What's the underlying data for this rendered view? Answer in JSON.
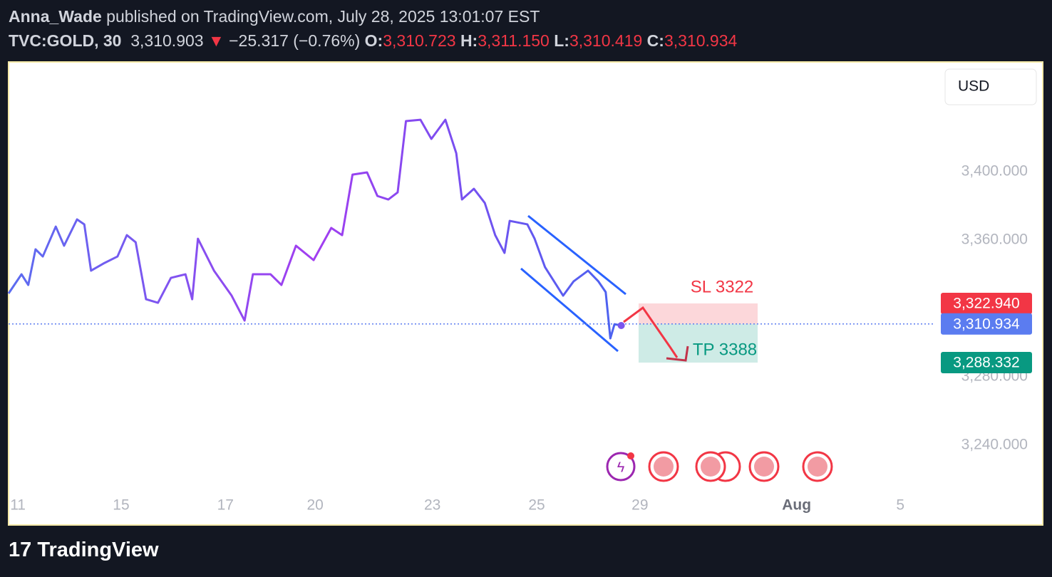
{
  "header": {
    "author": "Anna_Wade",
    "published": "published on TradingView.com, July 28, 2025 13:01:07 EST",
    "symbol": "TVC:GOLD, 30",
    "last": "3,310.903",
    "arrow": "▼",
    "change": "−25.317 (−0.76%)",
    "ohlc": [
      {
        "key": "O:",
        "value": "3,310.723"
      },
      {
        "key": "H:",
        "value": "3,311.150"
      },
      {
        "key": "L:",
        "value": "3,310.419"
      },
      {
        "key": "C:",
        "value": "3,310.934"
      }
    ]
  },
  "currency": "USD",
  "footer": "TradingView",
  "chart_data": {
    "type": "line",
    "x": [
      0,
      0.25,
      0.38,
      0.52,
      0.66,
      0.91,
      1.07,
      1.32,
      1.46,
      1.59,
      1.83,
      2.1,
      2.28,
      2.45,
      2.65,
      2.88,
      3.13,
      3.41,
      3.54,
      3.65,
      3.96,
      4.3,
      4.55,
      4.71,
      5.05,
      5.26,
      5.54,
      5.88,
      6.22,
      6.43,
      6.63,
      6.91,
      7.11,
      7.32,
      7.5,
      7.66,
      7.94,
      8.15,
      8.42,
      8.63,
      8.74,
      8.97,
      9.18,
      9.38,
      9.56,
      9.66,
      10.0,
      10.14,
      10.34,
      10.69,
      10.89,
      11.17,
      11.37,
      11.51,
      11.6,
      11.68,
      11.81
    ],
    "series": [
      {
        "name": "TVC:GOLD",
        "color": "#7b55ee",
        "values": [
          3328.75,
          3340,
          3333.75,
          3354.6,
          3350.4,
          3367.9,
          3356.7,
          3372.1,
          3369.2,
          3342.1,
          3346.3,
          3350.4,
          3362.9,
          3358.75,
          3325.4,
          3323.3,
          3337.9,
          3340,
          3325.4,
          3360.8,
          3342.1,
          3327.5,
          3312.9,
          3340,
          3340,
          3333.75,
          3356.7,
          3348.3,
          3367.1,
          3362.9,
          3398.3,
          3399.6,
          3385.8,
          3383.75,
          3387.9,
          3429.6,
          3430.4,
          3419.2,
          3430.4,
          3410.8,
          3383.75,
          3390,
          3381.7,
          3362.9,
          3352.5,
          3371.25,
          3369.2,
          3360.8,
          3344.2,
          3327.5,
          3335.8,
          3342.1,
          3335.8,
          3329.6,
          3302.5,
          3310.8,
          3310
        ]
      }
    ],
    "xlim": [
      0,
      17.64
    ],
    "xticks": [
      {
        "value": 0.18,
        "label": "11"
      },
      {
        "value": 2.17,
        "label": "15"
      },
      {
        "value": 4.18,
        "label": "17"
      },
      {
        "value": 5.91,
        "label": "20"
      },
      {
        "value": 8.17,
        "label": "23"
      },
      {
        "value": 10.18,
        "label": "25"
      },
      {
        "value": 12.17,
        "label": "29"
      },
      {
        "value": 15.19,
        "label": "Aug"
      },
      {
        "value": 17.19,
        "label": "5"
      }
    ],
    "ylim": [
      3212.9,
      3464.2
    ],
    "yticks": [
      {
        "value": 3240,
        "label": "3,240.000"
      },
      {
        "value": 3280,
        "label": "3,280.000"
      },
      {
        "value": 3360,
        "label": "3,360.000"
      },
      {
        "value": 3400,
        "label": "3,400.000"
      }
    ],
    "price_labels": [
      {
        "value": 3322.94,
        "label": "3,322.940",
        "color": "#f23645"
      },
      {
        "value": 3310.934,
        "label": "3,310.934",
        "color": "#5b7cf0"
      },
      {
        "value": 3288.332,
        "label": "3,288.332",
        "color": "#089981"
      }
    ],
    "annotations": [
      {
        "text": "SL 3322",
        "color": "#f23645"
      },
      {
        "text": "TP 3388",
        "color": "#089981"
      }
    ],
    "grid": false
  }
}
